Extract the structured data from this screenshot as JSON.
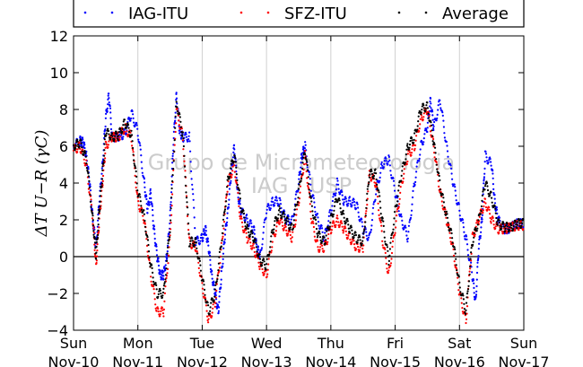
{
  "chart_data": {
    "type": "scatter",
    "title": "",
    "xlabel": "",
    "ylabel": "ΔT U−R (γC)",
    "ylim": [
      -4,
      12
    ],
    "yticks": [
      -4,
      -2,
      0,
      2,
      4,
      6,
      8,
      10,
      12
    ],
    "xlim": [
      0,
      7
    ],
    "grid": "vertical-day-lines",
    "legend_position": "top",
    "xticks": [
      {
        "x": 0,
        "day": "Sun",
        "date": "Nov-10"
      },
      {
        "x": 1,
        "day": "Mon",
        "date": "Nov-11"
      },
      {
        "x": 2,
        "day": "Tue",
        "date": "Nov-12"
      },
      {
        "x": 3,
        "day": "Wed",
        "date": "Nov-13"
      },
      {
        "x": 4,
        "day": "Thu",
        "date": "Nov-14"
      },
      {
        "x": 5,
        "day": "Fri",
        "date": "Nov-15"
      },
      {
        "x": 6,
        "day": "Sat",
        "date": "Nov-16"
      },
      {
        "x": 7,
        "day": "Sun",
        "date": "Nov-17"
      }
    ],
    "series": [
      {
        "name": "IAG-ITU",
        "color": "#0000ff",
        "x": [
          0,
          0.1,
          0.15,
          0.2,
          0.25,
          0.3,
          0.35,
          0.4,
          0.45,
          0.5,
          0.55,
          0.6,
          0.7,
          0.8,
          0.9,
          1.0,
          1.1,
          1.15,
          1.2,
          1.25,
          1.3,
          1.35,
          1.4,
          1.45,
          1.5,
          1.55,
          1.6,
          1.65,
          1.7,
          1.8,
          1.9,
          2.0,
          2.05,
          2.1,
          2.15,
          2.2,
          2.25,
          2.3,
          2.35,
          2.4,
          2.45,
          2.5,
          2.55,
          2.6,
          2.7,
          2.8,
          2.85,
          2.9,
          3.0,
          3.1,
          3.2,
          3.3,
          3.4,
          3.5,
          3.55,
          3.6,
          3.7,
          3.8,
          3.9,
          4.0,
          4.1,
          4.2,
          4.3,
          4.4,
          4.5,
          4.6,
          4.7,
          4.8,
          4.9,
          5.0,
          5.1,
          5.2,
          5.3,
          5.4,
          5.5,
          5.55,
          5.6,
          5.7,
          5.8,
          5.9,
          6.0,
          6.1,
          6.2,
          6.25,
          6.3,
          6.35,
          6.4,
          6.5,
          6.55,
          6.6,
          6.7,
          6.75,
          6.8,
          6.9,
          7.0
        ],
        "y": [
          6,
          6.3,
          6.2,
          5.5,
          4,
          2,
          0.5,
          3,
          5,
          7.5,
          8.8,
          6.5,
          6.5,
          6.7,
          7.8,
          6.8,
          4,
          2.5,
          3.5,
          1.5,
          0,
          -1,
          -1,
          0,
          2,
          6,
          8.8,
          6.8,
          6.5,
          6.5,
          0.8,
          1,
          1.5,
          0.5,
          -1,
          -2,
          -3,
          -1,
          1,
          2.5,
          4.5,
          6,
          3.5,
          2.5,
          2,
          1.5,
          0.5,
          0,
          2.5,
          3,
          3,
          2,
          2,
          4,
          5.5,
          6,
          3.5,
          2,
          1,
          2.5,
          4,
          3,
          3,
          2.8,
          1.5,
          1,
          3.5,
          5,
          5.3,
          3.5,
          2,
          1,
          4,
          6,
          7,
          8.5,
          7,
          8.5,
          6,
          4,
          2.5,
          1,
          -1,
          -2.5,
          0.5,
          2,
          5.5,
          5,
          3,
          2,
          1.5,
          1.5,
          1.6,
          1.8,
          1.8
        ]
      },
      {
        "name": "SFZ-ITU",
        "color": "#ff0000",
        "x": [
          0,
          0.1,
          0.2,
          0.3,
          0.35,
          0.4,
          0.45,
          0.5,
          0.6,
          0.7,
          0.8,
          0.9,
          1.0,
          1.1,
          1.2,
          1.3,
          1.4,
          1.5,
          1.6,
          1.7,
          1.8,
          1.9,
          2.0,
          2.1,
          2.2,
          2.3,
          2.4,
          2.5,
          2.6,
          2.7,
          2.8,
          2.9,
          3.0,
          3.1,
          3.2,
          3.3,
          3.4,
          3.5,
          3.6,
          3.7,
          3.8,
          3.9,
          4.0,
          4.1,
          4.2,
          4.3,
          4.4,
          4.5,
          4.6,
          4.7,
          4.8,
          4.9,
          5.0,
          5.1,
          5.2,
          5.3,
          5.4,
          5.5,
          5.6,
          5.7,
          5.8,
          5.9,
          6.0,
          6.1,
          6.2,
          6.3,
          6.4,
          6.5,
          6.6,
          6.7,
          6.8,
          6.9,
          7.0
        ],
        "y": [
          5.8,
          6,
          5,
          2,
          -0.5,
          2,
          4,
          6,
          6.5,
          6.5,
          7,
          6.5,
          3,
          2,
          -1,
          -3,
          -3,
          1,
          8,
          6.5,
          0.8,
          0.5,
          -1.5,
          -3.5,
          -2.5,
          0.5,
          4,
          5,
          2,
          1,
          0.5,
          -0.5,
          -1,
          1,
          2,
          1.5,
          1,
          3,
          5.5,
          2,
          0.5,
          0.5,
          1.5,
          2,
          1.5,
          1,
          0.5,
          0.5,
          4.5,
          4,
          1,
          -1,
          1.5,
          4,
          5.5,
          6,
          7.5,
          8,
          6,
          3.5,
          2,
          0.5,
          -2,
          -3.5,
          1,
          2,
          3,
          2,
          1.5,
          1.5,
          1.6,
          1.7,
          1.7
        ]
      },
      {
        "name": "Average",
        "color": "#000000",
        "x": [
          0,
          0.1,
          0.2,
          0.3,
          0.35,
          0.4,
          0.45,
          0.5,
          0.6,
          0.7,
          0.8,
          0.9,
          1.0,
          1.1,
          1.2,
          1.3,
          1.4,
          1.5,
          1.6,
          1.7,
          1.8,
          1.9,
          2.0,
          2.1,
          2.2,
          2.3,
          2.4,
          2.5,
          2.6,
          2.7,
          2.8,
          2.9,
          3.0,
          3.1,
          3.2,
          3.3,
          3.4,
          3.5,
          3.6,
          3.7,
          3.8,
          3.9,
          4.0,
          4.1,
          4.2,
          4.3,
          4.4,
          4.5,
          4.6,
          4.7,
          4.8,
          4.9,
          5.0,
          5.1,
          5.2,
          5.3,
          5.4,
          5.5,
          5.6,
          5.7,
          5.8,
          5.9,
          6.0,
          6.1,
          6.2,
          6.3,
          6.4,
          6.5,
          6.6,
          6.7,
          6.8,
          6.9,
          7.0
        ],
        "y": [
          6,
          6.2,
          5.3,
          2,
          0,
          2.5,
          4.5,
          6.8,
          6.5,
          6.6,
          7.3,
          6.6,
          3.5,
          2.2,
          -0.5,
          -2,
          -2,
          1.5,
          8.4,
          6.6,
          0.8,
          0.8,
          -1.2,
          -3,
          -2,
          0.8,
          4.2,
          5.5,
          2.8,
          1.5,
          1,
          -0.2,
          -0.5,
          1.5,
          2.5,
          2,
          1.5,
          3.5,
          5.8,
          2.8,
          1.2,
          0.8,
          2,
          3.2,
          2.2,
          1.5,
          1,
          0.8,
          4.5,
          4.5,
          2,
          -0.2,
          2.5,
          4.5,
          6,
          6.5,
          8,
          8.2,
          6.2,
          3.8,
          2.2,
          0.8,
          -1.5,
          -3,
          0.8,
          2,
          4,
          3.2,
          1.8,
          1.6,
          1.6,
          1.8,
          1.8
        ]
      }
    ],
    "annotations": [
      "Grupo de Micrometeorologia",
      "IAG / USP"
    ]
  },
  "legend": [
    "IAG-ITU",
    "SFZ-ITU",
    "Average"
  ]
}
